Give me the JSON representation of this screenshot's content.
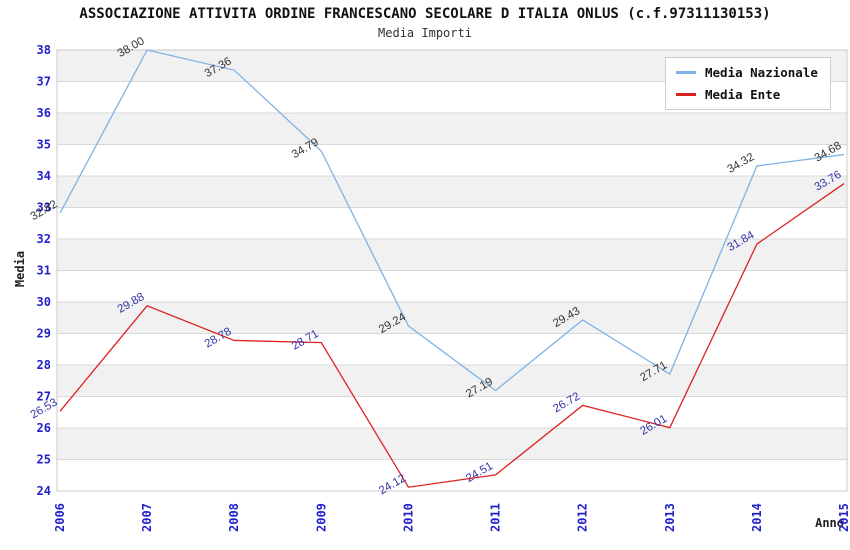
{
  "header": {
    "title": "ASSOCIAZIONE ATTIVITA ORDINE FRANCESCANO SECOLARE D ITALIA ONLUS (c.f.97311130153)",
    "subtitle": "Media Importi"
  },
  "chart_data": {
    "type": "line",
    "title": "Media Importi",
    "xlabel": "Anno",
    "ylabel": "Media",
    "categories": [
      "2006",
      "2007",
      "2008",
      "2009",
      "2010",
      "2011",
      "2012",
      "2013",
      "2014",
      "2015"
    ],
    "series": [
      {
        "name": "Media Nazionale",
        "color": "#7fb2e5",
        "label_color": "#333333",
        "values": [
          32.82,
          38.0,
          37.36,
          34.79,
          29.24,
          27.19,
          29.43,
          27.71,
          34.32,
          34.68
        ]
      },
      {
        "name": "Media Ente",
        "color": "#dd2222",
        "label_color": "#3333aa",
        "values": [
          26.53,
          29.88,
          28.78,
          28.71,
          24.12,
          24.51,
          26.72,
          26.01,
          31.84,
          33.76
        ]
      }
    ],
    "ylim": [
      24,
      38
    ],
    "yticks": [
      24,
      25,
      26,
      27,
      28,
      29,
      30,
      31,
      32,
      33,
      34,
      35,
      36,
      37,
      38
    ],
    "grid": true,
    "legend_position": "top-right",
    "styles": {
      "band_color": "#f1f1f1",
      "grid_color": "#d9d9d9",
      "border_color": "#c8c8c8",
      "tick_color": "#2222cc"
    }
  }
}
